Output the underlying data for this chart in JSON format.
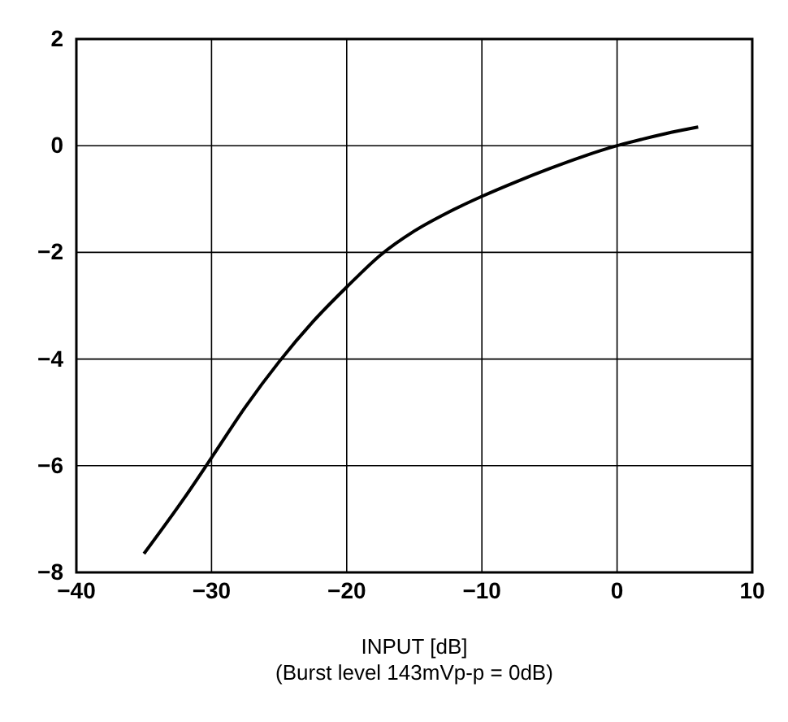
{
  "chart_data": {
    "type": "line",
    "xlabel": "INPUT [dB]",
    "annotations": [
      "(Burst level 143mVp-p = 0dB)"
    ],
    "x": [
      -35,
      -32,
      -30,
      -27.5,
      -25,
      -22.5,
      -20,
      -17.5,
      -15,
      -12.5,
      -10,
      -7.5,
      -5,
      -2.5,
      0,
      2,
      4,
      6
    ],
    "series": [
      {
        "color": "#000000",
        "values": [
          -7.65,
          -6.6,
          -5.85,
          -4.9,
          -4.05,
          -3.3,
          -2.65,
          -2.05,
          -1.6,
          -1.25,
          -0.95,
          -0.68,
          -0.43,
          -0.2,
          0,
          0.13,
          0.25,
          0.35
        ]
      }
    ],
    "xlim": [
      -40,
      10
    ],
    "xticks": [
      -40,
      -30,
      -20,
      -10,
      0,
      10
    ],
    "ylim": [
      -8,
      2
    ],
    "yticks": [
      -8,
      -6,
      -4,
      -2,
      0,
      2
    ],
    "grid": true,
    "marker": "none",
    "line_style": "solid"
  }
}
